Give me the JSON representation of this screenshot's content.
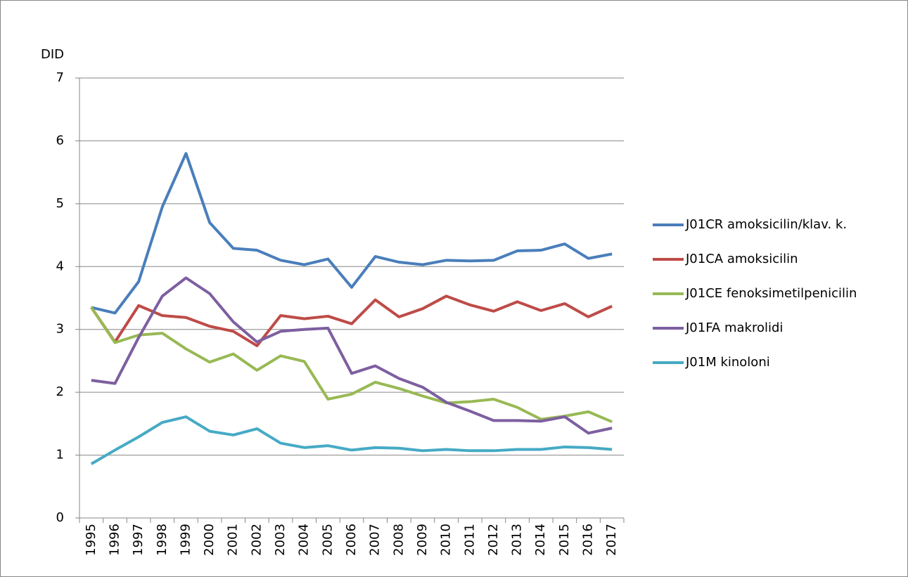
{
  "chart_data": {
    "type": "line",
    "ylabel": "DID",
    "categories": [
      "1995",
      "1996",
      "1997",
      "1998",
      "1999",
      "2000",
      "2001",
      "2002",
      "2003",
      "2004",
      "2005",
      "2006",
      "2007",
      "2008",
      "2009",
      "2010",
      "2011",
      "2012",
      "2013",
      "2014",
      "2015",
      "2016",
      "2017"
    ],
    "series": [
      {
        "name": "J01CR amoksicilin/klav. k.",
        "color": "#4a7ebb",
        "values": [
          3.35,
          3.26,
          3.76,
          4.95,
          5.8,
          4.7,
          4.29,
          4.26,
          4.1,
          4.03,
          4.12,
          3.67,
          4.16,
          4.07,
          4.03,
          4.1,
          4.09,
          4.1,
          4.25,
          4.26,
          4.36,
          4.13,
          4.2
        ]
      },
      {
        "name": "J01CA amoksicilin",
        "color": "#be4b48",
        "values": [
          3.35,
          2.8,
          3.38,
          3.22,
          3.19,
          3.05,
          2.97,
          2.74,
          3.22,
          3.17,
          3.21,
          3.09,
          3.47,
          3.2,
          3.33,
          3.53,
          3.39,
          3.29,
          3.44,
          3.3,
          3.41,
          3.2,
          3.37
        ]
      },
      {
        "name": "J01CE fenoksimetilpenicilin",
        "color": "#98b954",
        "values": [
          3.35,
          2.79,
          2.91,
          2.94,
          2.69,
          2.48,
          2.61,
          2.35,
          2.58,
          2.49,
          1.89,
          1.97,
          2.16,
          2.06,
          1.94,
          1.83,
          1.85,
          1.89,
          1.76,
          1.57,
          1.62,
          1.69,
          1.53
        ]
      },
      {
        "name": "J01FA makrolidi",
        "color": "#7d5fa0",
        "values": [
          2.19,
          2.14,
          2.87,
          3.53,
          3.82,
          3.57,
          3.12,
          2.8,
          2.97,
          3.0,
          3.02,
          2.3,
          2.42,
          2.22,
          2.08,
          1.84,
          1.7,
          1.55,
          1.55,
          1.54,
          1.61,
          1.35,
          1.43
        ]
      },
      {
        "name": "J01M kinoloni",
        "color": "#46aac5",
        "values": [
          0.86,
          1.08,
          1.29,
          1.52,
          1.61,
          1.38,
          1.32,
          1.42,
          1.19,
          1.12,
          1.15,
          1.08,
          1.12,
          1.11,
          1.07,
          1.09,
          1.07,
          1.07,
          1.09,
          1.09,
          1.13,
          1.12,
          1.09
        ]
      }
    ],
    "ylim": [
      0,
      7
    ],
    "yticks": [
      0,
      1,
      2,
      3,
      4,
      5,
      6,
      7
    ],
    "grid": true,
    "legend": "right"
  }
}
